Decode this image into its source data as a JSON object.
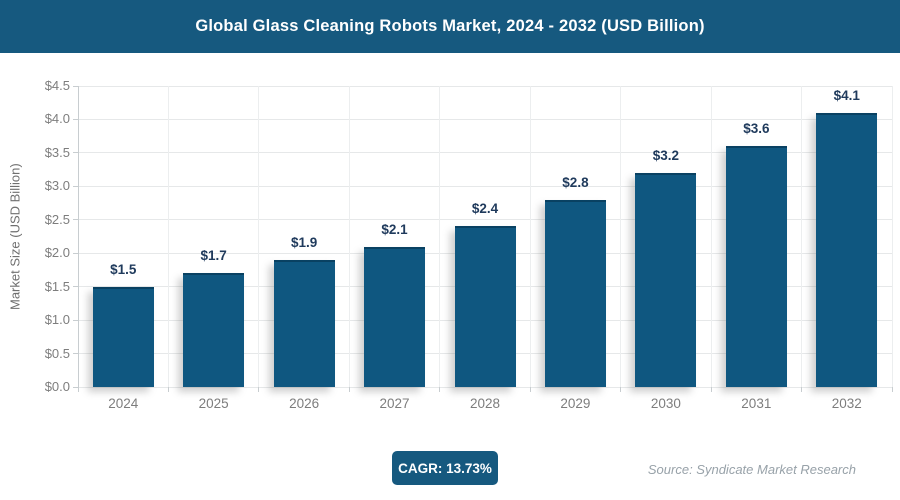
{
  "header": {
    "title": "Global Glass Cleaning Robots Market, 2024 - 2032 (USD Billion)"
  },
  "chart_data": {
    "type": "bar",
    "title": "Global Glass Cleaning Robots Market, 2024 - 2032 (USD Billion)",
    "categories": [
      "2024",
      "2025",
      "2026",
      "2027",
      "2028",
      "2029",
      "2030",
      "2031",
      "2032"
    ],
    "values": [
      1.5,
      1.7,
      1.9,
      2.1,
      2.4,
      2.8,
      3.2,
      3.6,
      4.1
    ],
    "bar_labels": [
      "$1.5",
      "$1.7",
      "$1.9",
      "$2.1",
      "$2.4",
      "$2.8",
      "$3.2",
      "$3.6",
      "$4.1"
    ],
    "xlabel": "",
    "ylabel": "Market Size (USD Billion)",
    "ylim": [
      0,
      4.5
    ],
    "yticks": [
      {
        "label": "$0.0",
        "value": 0.0
      },
      {
        "label": "$0.5",
        "value": 0.5
      },
      {
        "label": "$1.0",
        "value": 1.0
      },
      {
        "label": "$1.5",
        "value": 1.5
      },
      {
        "label": "$2.0",
        "value": 2.0
      },
      {
        "label": "$2.5",
        "value": 2.5
      },
      {
        "label": "$3.0",
        "value": 3.0
      },
      {
        "label": "$3.5",
        "value": 3.5
      },
      {
        "label": "$4.0",
        "value": 4.0
      },
      {
        "label": "$4.5",
        "value": 4.5
      }
    ],
    "grid": true,
    "legend": false,
    "colors": {
      "bar": "#0f5780",
      "bar_label": "#1f3a5c",
      "axis_text": "#7d7d7d",
      "grid_line": "#e6e8e9",
      "axis_line": "#c8cdd0"
    }
  },
  "footer": {
    "cagr_label": "CAGR: 13.73%",
    "source": "Source: Syndicate Market Research"
  },
  "colors": {
    "header_bg": "#16597f",
    "header_text": "#ffffff",
    "badge_bg": "#16597f",
    "badge_text": "#ffffff",
    "source_text": "#98a2a9",
    "background": "#ffffff"
  }
}
